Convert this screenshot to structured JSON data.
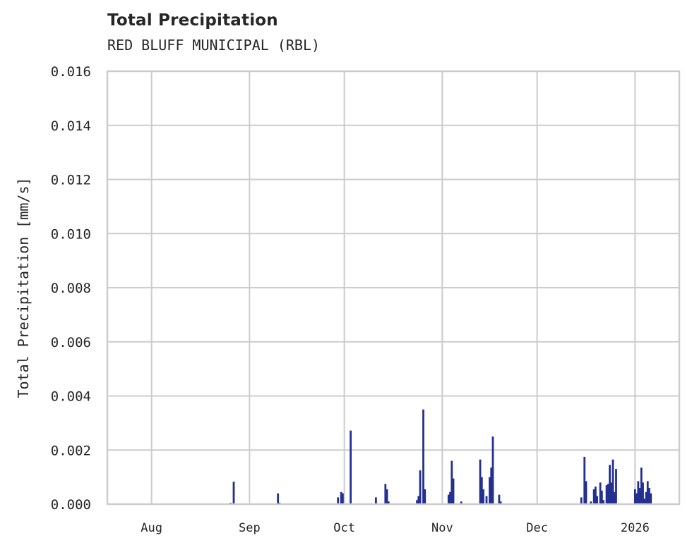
{
  "chart_data": {
    "type": "bar",
    "title": "Total Precipitation",
    "subtitle": "RED BLUFF MUNICIPAL (RBL)",
    "xlabel": "",
    "ylabel": "Total Precipitation [mm/s]",
    "ylim": [
      0.0,
      0.016
    ],
    "yticks": [
      "0.000",
      "0.002",
      "0.004",
      "0.006",
      "0.008",
      "0.010",
      "0.012",
      "0.014",
      "0.016"
    ],
    "xticks": [
      "Aug",
      "Sep",
      "Oct",
      "Nov",
      "Dec",
      "2026"
    ],
    "xrange": [
      "2025-07-18",
      "2026-01-15"
    ],
    "grid": true,
    "legend": null,
    "bar_color": "#233090",
    "grid_color": "#cccccc",
    "series": [
      {
        "name": "Total Precipitation",
        "points": [
          [
            "2025-08-26",
            5e-05
          ],
          [
            "2025-08-27",
            0.00083
          ],
          [
            "2025-09-10",
            0.0004
          ],
          [
            "2025-09-10T12",
            5e-05
          ],
          [
            "2025-09-29",
            0.00025
          ],
          [
            "2025-09-30",
            0.00045
          ],
          [
            "2025-09-30T12",
            0.0004
          ],
          [
            "2025-10-03",
            0.00272
          ],
          [
            "2025-10-11",
            0.00025
          ],
          [
            "2025-10-14",
            0.00075
          ],
          [
            "2025-10-14T12",
            0.00055
          ],
          [
            "2025-10-15",
            0.0001
          ],
          [
            "2025-10-24",
            0.00015
          ],
          [
            "2025-10-24T12",
            0.0003
          ],
          [
            "2025-10-25",
            0.00125
          ],
          [
            "2025-10-26",
            0.0035
          ],
          [
            "2025-10-26T12",
            0.00055
          ],
          [
            "2025-11-03",
            0.00035
          ],
          [
            "2025-11-03T12",
            0.00045
          ],
          [
            "2025-11-04",
            0.0016
          ],
          [
            "2025-11-04T12",
            0.00095
          ],
          [
            "2025-11-07",
            0.0001
          ],
          [
            "2025-11-13",
            0.00165
          ],
          [
            "2025-11-13T12",
            0.001
          ],
          [
            "2025-11-14",
            0.00055
          ],
          [
            "2025-11-15",
            0.0003
          ],
          [
            "2025-11-16",
            0.001
          ],
          [
            "2025-11-16T12",
            0.00135
          ],
          [
            "2025-11-17",
            0.0025
          ],
          [
            "2025-11-19",
            0.00035
          ],
          [
            "2025-11-19T12",
            0.0001
          ],
          [
            "2025-12-15",
            0.00025
          ],
          [
            "2025-12-16",
            0.00175
          ],
          [
            "2025-12-16T12",
            0.00085
          ],
          [
            "2025-12-18",
            0.0001
          ],
          [
            "2025-12-19",
            0.00055
          ],
          [
            "2025-12-19T12",
            0.00065
          ],
          [
            "2025-12-20",
            0.0003
          ],
          [
            "2025-12-21",
            0.0008
          ],
          [
            "2025-12-21T12",
            0.0005
          ],
          [
            "2025-12-22",
            0.00015
          ],
          [
            "2025-12-23",
            0.0007
          ],
          [
            "2025-12-23T12",
            0.00075
          ],
          [
            "2025-12-24",
            0.00145
          ],
          [
            "2025-12-24T12",
            0.0008
          ],
          [
            "2025-12-25",
            0.00165
          ],
          [
            "2025-12-25T12",
            0.00045
          ],
          [
            "2025-12-26",
            0.0013
          ],
          [
            "2026-01-01",
            0.00055
          ],
          [
            "2026-01-01T12",
            0.0004
          ],
          [
            "2026-01-02",
            0.00085
          ],
          [
            "2026-01-02T12",
            0.0006
          ],
          [
            "2026-01-03",
            0.00135
          ],
          [
            "2026-01-03T12",
            0.0008
          ],
          [
            "2026-01-04",
            0.0002
          ],
          [
            "2026-01-04T12",
            0.00045
          ],
          [
            "2026-01-05",
            0.00085
          ],
          [
            "2026-01-05T12",
            0.0006
          ],
          [
            "2026-01-06",
            0.0004
          ]
        ]
      }
    ]
  }
}
